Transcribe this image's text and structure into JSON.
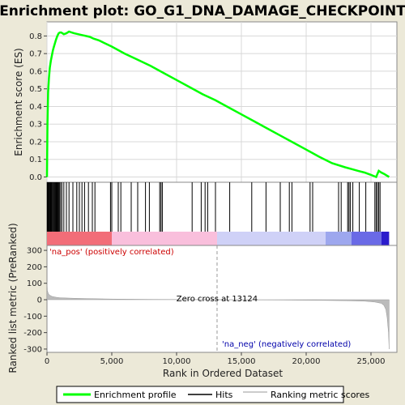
{
  "chart_data": {
    "type": "line",
    "title": "Enrichment plot: GO_G1_DNA_DAMAGE_CHECKPOINT",
    "xlabel": "Rank in Ordered Dataset",
    "es_panel": {
      "ylabel": "Enrichment score (ES)",
      "ylim": [
        -0.03,
        0.88
      ],
      "yticks": [
        "0.0",
        "0.1",
        "0.2",
        "0.3",
        "0.4",
        "0.5",
        "0.6",
        "0.7",
        "0.8"
      ],
      "ytick_values": [
        0,
        0.1,
        0.2,
        0.3,
        0.4,
        0.5,
        0.6,
        0.7,
        0.8
      ],
      "grid": true,
      "series": [
        {
          "name": "Enrichment profile",
          "color": "#00ff00",
          "x": [
            0,
            40,
            90,
            150,
            220,
            300,
            380,
            460,
            540,
            620,
            700,
            800,
            900,
            1000,
            1100,
            1300,
            1500,
            1700,
            1900,
            2100,
            2400,
            2700,
            3000,
            3300,
            3600,
            4000,
            5000,
            6000,
            7000,
            8000,
            9000,
            10000,
            11000,
            12000,
            13000,
            14000,
            15000,
            16000,
            17000,
            18000,
            19000,
            20000,
            21000,
            22000,
            23000,
            23500,
            24000,
            24500,
            25000,
            25400,
            25600,
            25800,
            26000,
            26400
          ],
          "y": [
            0.0,
            0.3,
            0.48,
            0.56,
            0.62,
            0.66,
            0.69,
            0.72,
            0.74,
            0.76,
            0.78,
            0.8,
            0.815,
            0.82,
            0.82,
            0.81,
            0.815,
            0.825,
            0.82,
            0.815,
            0.81,
            0.805,
            0.8,
            0.795,
            0.785,
            0.775,
            0.74,
            0.7,
            0.665,
            0.63,
            0.59,
            0.55,
            0.51,
            0.47,
            0.435,
            0.395,
            0.355,
            0.315,
            0.275,
            0.235,
            0.195,
            0.155,
            0.115,
            0.078,
            0.055,
            0.045,
            0.035,
            0.025,
            0.012,
            0.0,
            0.035,
            0.025,
            0.018,
            0.0
          ]
        }
      ]
    },
    "hits_panel": {
      "hits": [
        20,
        60,
        110,
        160,
        210,
        260,
        310,
        360,
        420,
        480,
        540,
        600,
        660,
        720,
        780,
        840,
        900,
        960,
        1050,
        1150,
        1300,
        1500,
        1700,
        2000,
        2300,
        2500,
        2700,
        2900,
        3200,
        3500,
        3700,
        4900,
        5000,
        5500,
        5700,
        6500,
        7000,
        7600,
        7900,
        8700,
        8800,
        8900,
        11200,
        11900,
        12200,
        12400,
        13000,
        14100,
        15800,
        16900,
        18000,
        18700,
        18900,
        20300,
        20500,
        22500,
        22700,
        23200,
        23300,
        23400,
        23600,
        24100,
        24600,
        25300,
        25400,
        25500,
        25600,
        25700
      ],
      "color_bar": [
        {
          "to": 5000,
          "color": "#f26d78"
        },
        {
          "to": 13124,
          "color": "#f9bfdc"
        },
        {
          "to": 21500,
          "color": "#cfd1f7"
        },
        {
          "to": 23500,
          "color": "#9da7ee"
        },
        {
          "to": 25800,
          "color": "#6a6ae6"
        },
        {
          "to": 26400,
          "color": "#2b1ccc"
        }
      ]
    },
    "metric_panel": {
      "ylabel": "Ranked list metric (PreRanked)",
      "ylim": [
        -320,
        330
      ],
      "yticks": [
        "300",
        "200",
        "100",
        "0",
        "-100",
        "-200",
        "-300"
      ],
      "ytick_values": [
        300,
        200,
        100,
        0,
        -100,
        -200,
        -300
      ],
      "pos_label": "'na_pos' (positively correlated)",
      "neg_label": "'na_neg' (negatively correlated)",
      "zero_cross_label": "Zero cross at 13124",
      "zero_cross": 13124,
      "metric_x": [
        0,
        30,
        100,
        200,
        400,
        700,
        1000,
        2000,
        3000,
        5000,
        8000,
        13124,
        18000,
        21000,
        23000,
        24500,
        25300,
        25800,
        26000,
        26150,
        26250,
        26350,
        26400
      ],
      "metric_y": [
        110,
        55,
        38,
        28,
        20,
        15,
        12,
        9,
        7,
        4,
        2,
        0,
        -2,
        -4,
        -6,
        -9,
        -14,
        -22,
        -35,
        -60,
        -110,
        -200,
        -300
      ]
    },
    "xlim": [
      0,
      27000
    ],
    "xticks": [
      "0",
      "5,000",
      "10,000",
      "15,000",
      "20,000",
      "25,000"
    ],
    "xtick_values": [
      0,
      5000,
      10000,
      15000,
      20000,
      25000
    ],
    "legend": {
      "placement": "bottom",
      "items": [
        {
          "label": "Enrichment profile",
          "color": "#00ff00"
        },
        {
          "label": "Hits",
          "color": "#000000"
        },
        {
          "label": "Ranking metric scores",
          "color": "#bbbbbb"
        }
      ]
    }
  }
}
